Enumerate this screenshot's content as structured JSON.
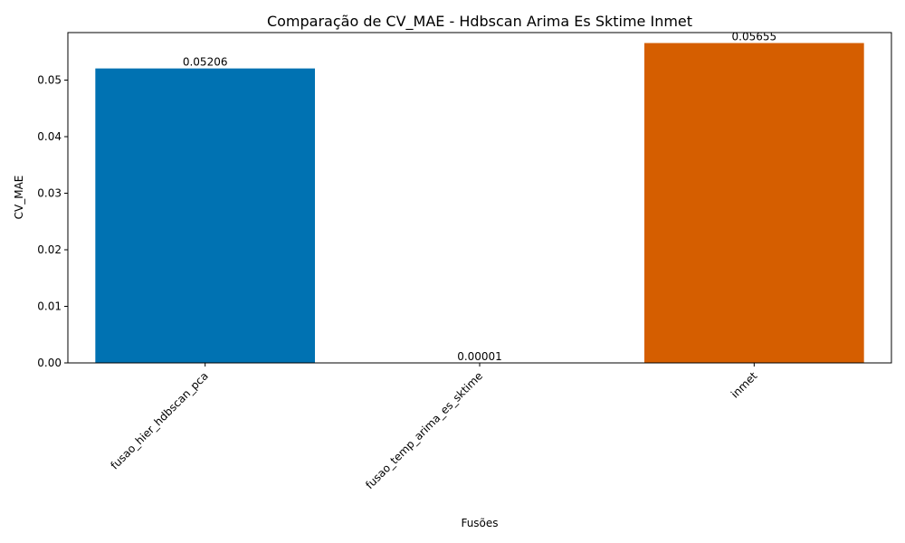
{
  "chart_data": {
    "type": "bar",
    "title": "Comparação de CV_MAE - Hdbscan Arima Es Sktime Inmet",
    "xlabel": "Fusões",
    "ylabel": "CV_MAE",
    "categories": [
      "fusao_hier_hdbscan_pca",
      "fusao_temp_arima_es_sktime",
      "inmet"
    ],
    "values": [
      0.05206,
      1e-05,
      0.05655
    ],
    "value_labels": [
      "0.05206",
      "0.00001",
      "0.05655"
    ],
    "colors": [
      "#0072b2",
      "#009e73",
      "#d55e00"
    ],
    "ylim": [
      0,
      0.0584
    ],
    "yticks": [
      0.0,
      0.01,
      0.02,
      0.03,
      0.04,
      0.05
    ],
    "ytick_labels": [
      "0.00",
      "0.01",
      "0.02",
      "0.03",
      "0.04",
      "0.05"
    ],
    "grid": false,
    "legend": "none"
  }
}
